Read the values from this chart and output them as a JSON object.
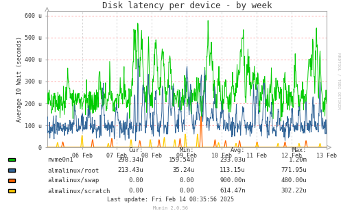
{
  "title": "Disk latency per device - by week",
  "ylabel": "Average IO Wait (seconds)",
  "background_color": "#FFFFFF",
  "grid_color_h": "#FF9999",
  "grid_color_v": "#CCCCCC",
  "ylim": [
    0,
    620
  ],
  "yticks": [
    0,
    100,
    200,
    300,
    400,
    500,
    600
  ],
  "ytick_labels": [
    "0",
    "100 u",
    "200 u",
    "300 u",
    "400 u",
    "500 u",
    "600 u"
  ],
  "xticklabels": [
    "06 Feb",
    "07 Feb",
    "08 Feb",
    "09 Feb",
    "10 Feb",
    "11 Feb",
    "12 Feb",
    "13 Feb"
  ],
  "legend_data": [
    {
      "label": "nvme0n1",
      "cur": "298.34u",
      "min": "159.54u",
      "avg": "233.03u",
      "max": "1.20m",
      "color": "#00CC00"
    },
    {
      "label": "almalinux/root",
      "cur": "213.43u",
      "min": "35.24u",
      "avg": "113.15u",
      "max": "771.95u",
      "color": "#336699"
    },
    {
      "label": "almalinux/swap",
      "cur": "0.00",
      "min": "0.00",
      "avg": "900.00n",
      "max": "480.00u",
      "color": "#FF6600"
    },
    {
      "label": "almalinux/scratch",
      "cur": "0.00",
      "min": "0.00",
      "avg": "614.47n",
      "max": "302.22u",
      "color": "#FFCC00"
    }
  ],
  "last_update": "Last update: Fri Feb 14 08:35:56 2025",
  "munin_version": "Munin 2.0.56",
  "rrdtool_text": "RRDTOOL / TOBI OETIKER",
  "title_fontsize": 9,
  "axis_fontsize": 6,
  "legend_fontsize": 6.5,
  "n_points": 800
}
